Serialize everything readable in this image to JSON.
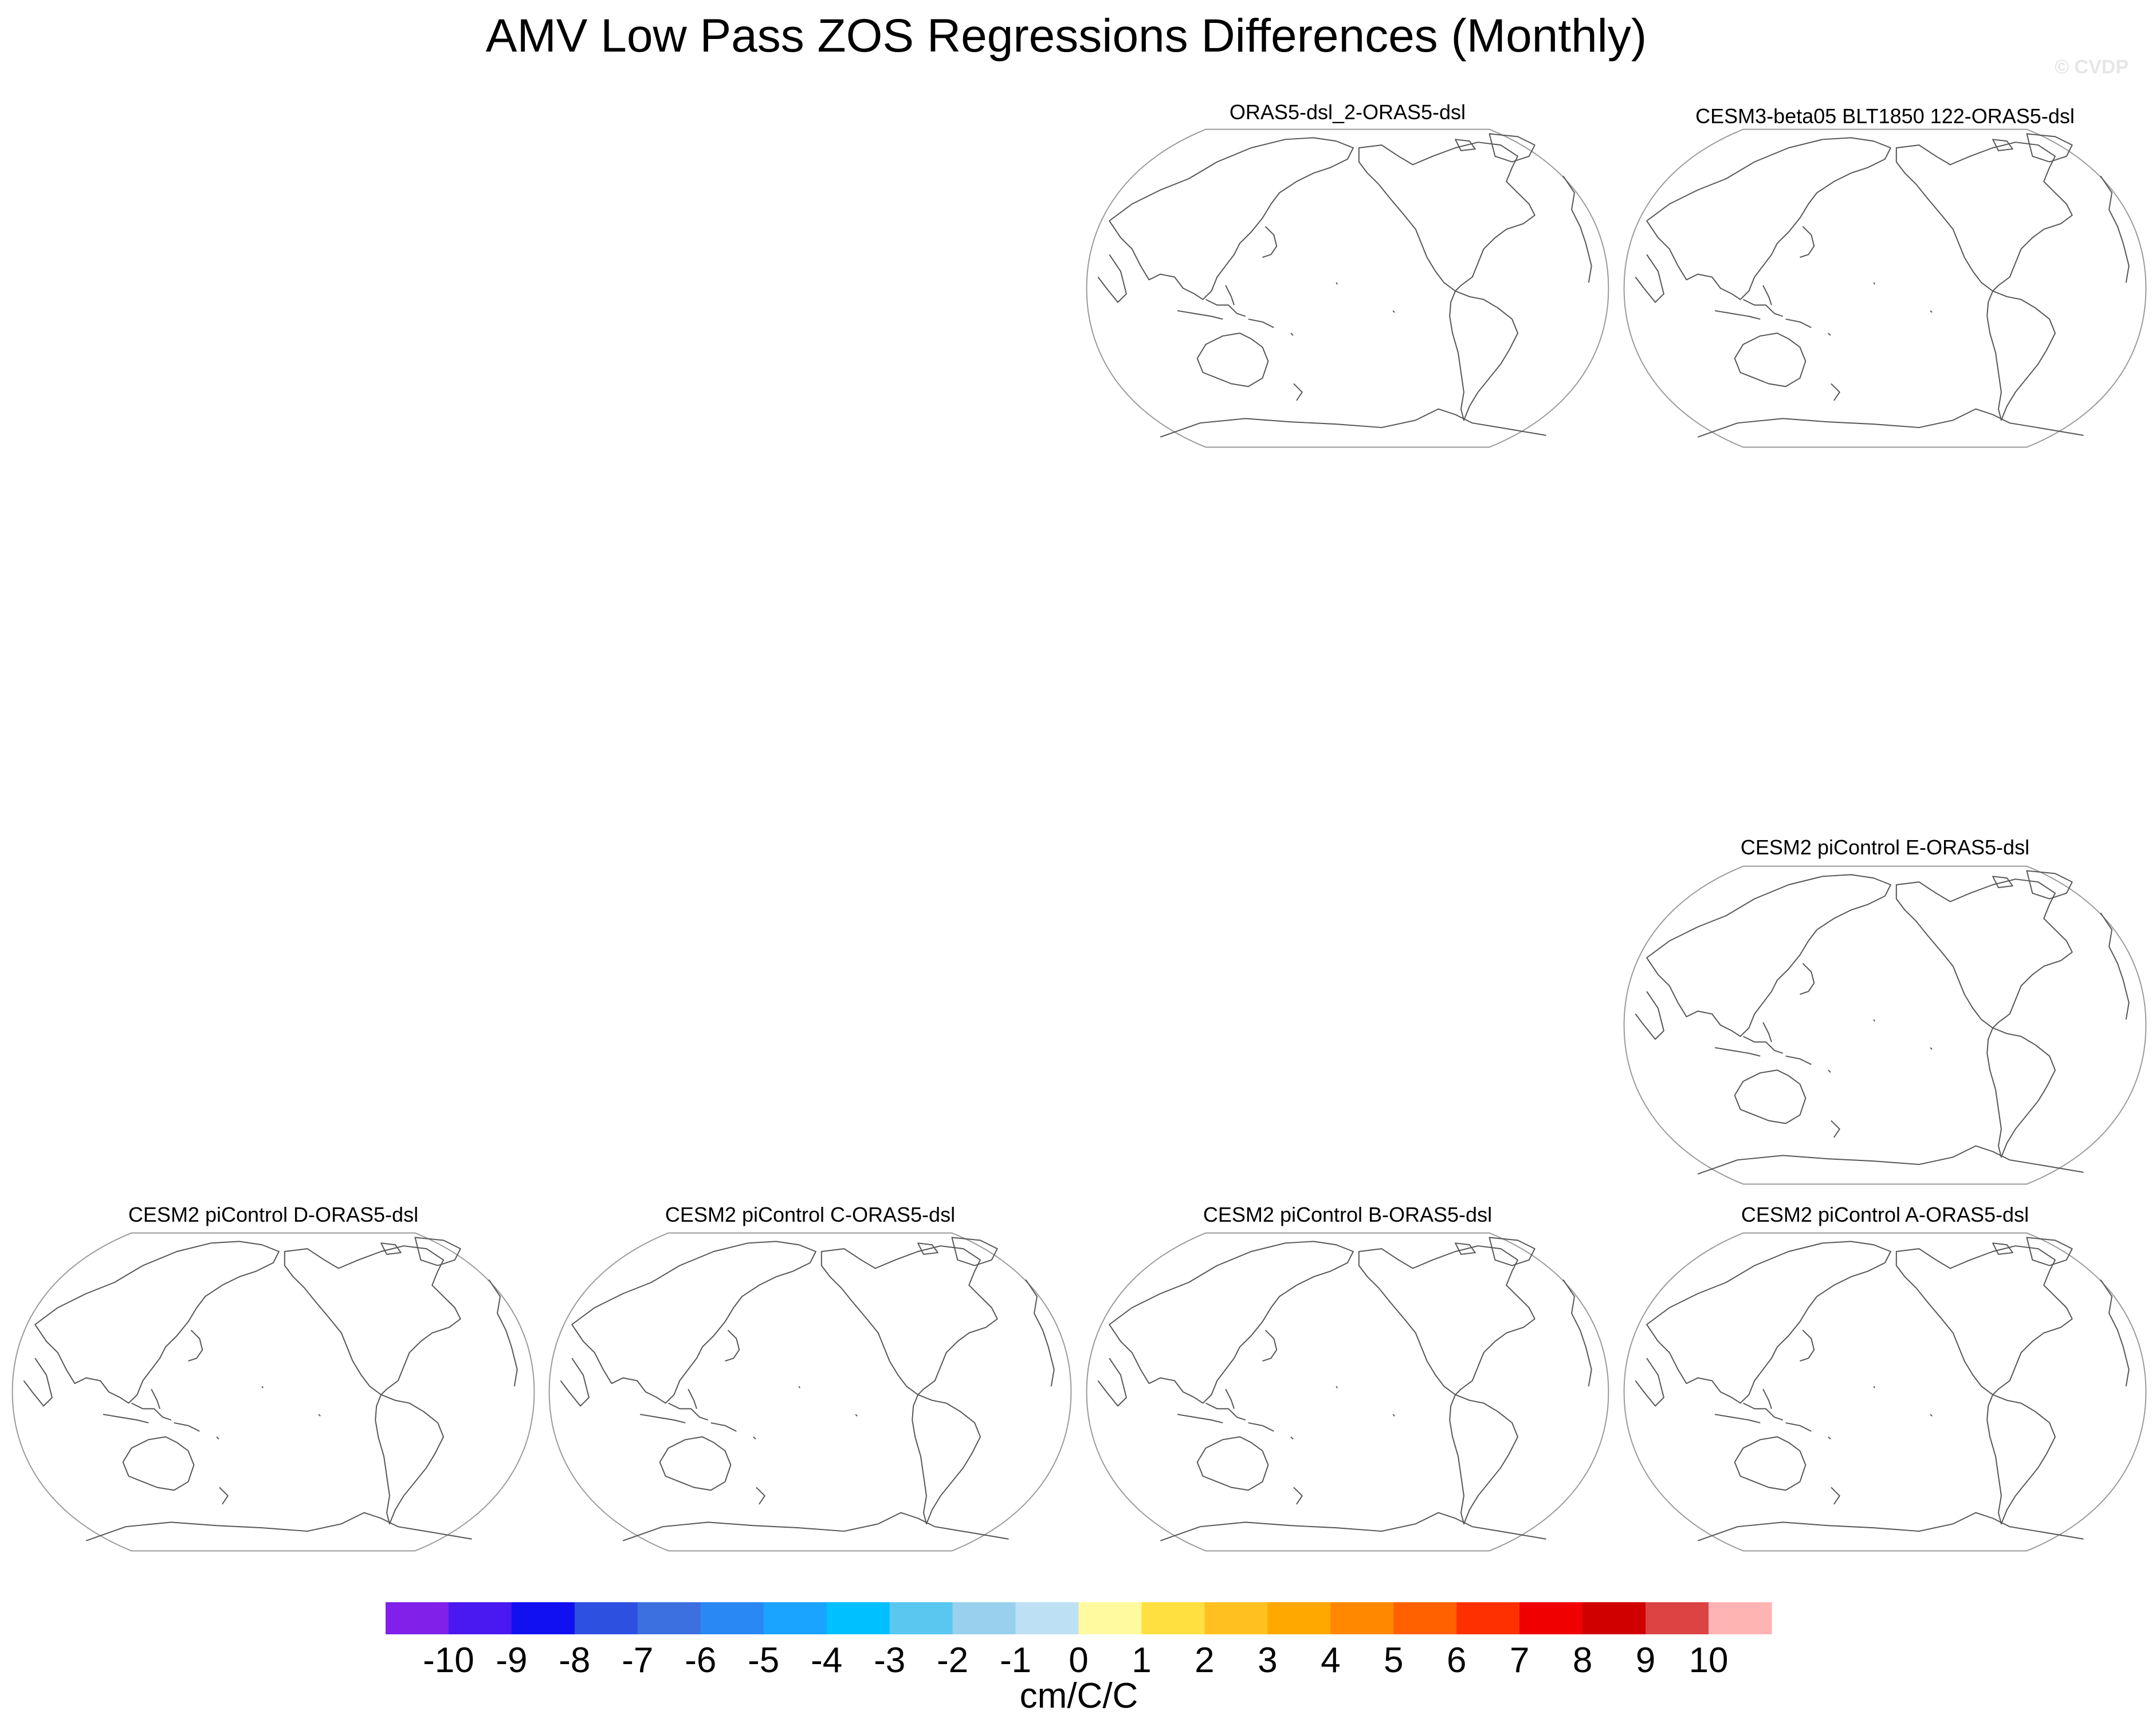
{
  "title": "AMV Low Pass ZOS Regressions Differences (Monthly)",
  "watermark": "© CVDP",
  "panels": [
    {
      "id": "p1",
      "title": "ORAS5-dsl_2-ORAS5-dsl"
    },
    {
      "id": "p2",
      "title": "CESM3-beta05 BLT1850 122-ORAS5-dsl"
    },
    {
      "id": "p3",
      "title": "CESM2 piControl E-ORAS5-dsl"
    },
    {
      "id": "p4",
      "title": "CESM2 piControl D-ORAS5-dsl"
    },
    {
      "id": "p5",
      "title": "CESM2 piControl C-ORAS5-dsl"
    },
    {
      "id": "p6",
      "title": "CESM2 piControl B-ORAS5-dsl"
    },
    {
      "id": "p7",
      "title": "CESM2 piControl A-ORAS5-dsl"
    }
  ],
  "chart_data": {
    "type": "heatmap",
    "title": "AMV Low Pass ZOS Regressions Differences (Monthly)",
    "projection": "global map (Pacific-centered)",
    "panel_titles": [
      "ORAS5-dsl_2-ORAS5-dsl",
      "CESM3-beta05 BLT1850 122-ORAS5-dsl",
      "CESM2 piControl E-ORAS5-dsl",
      "CESM2 piControl D-ORAS5-dsl",
      "CESM2 piControl C-ORAS5-dsl",
      "CESM2 piControl B-ORAS5-dsl",
      "CESM2 piControl A-ORAS5-dsl"
    ],
    "colorbar": {
      "units": "cm/C/C",
      "levels": [
        "-10",
        "-9",
        "-8",
        "-7",
        "-6",
        "-5",
        "-4",
        "-3",
        "-2",
        "-1",
        "0",
        "1",
        "2",
        "3",
        "4",
        "5",
        "6",
        "7",
        "8",
        "9",
        "10"
      ],
      "colors": [
        "#8020e8",
        "#4a18f0",
        "#1010f0",
        "#2e50e0",
        "#3c70e0",
        "#2a88f4",
        "#1aa4ff",
        "#00c0ff",
        "#58c8f0",
        "#98d0ee",
        "#bde0f4",
        "#fffaa0",
        "#ffe040",
        "#ffc020",
        "#ffa800",
        "#ff8800",
        "#ff6000",
        "#ff3000",
        "#f00000",
        "#d00000",
        "#dc4444",
        "#ffb4b4"
      ]
    }
  }
}
